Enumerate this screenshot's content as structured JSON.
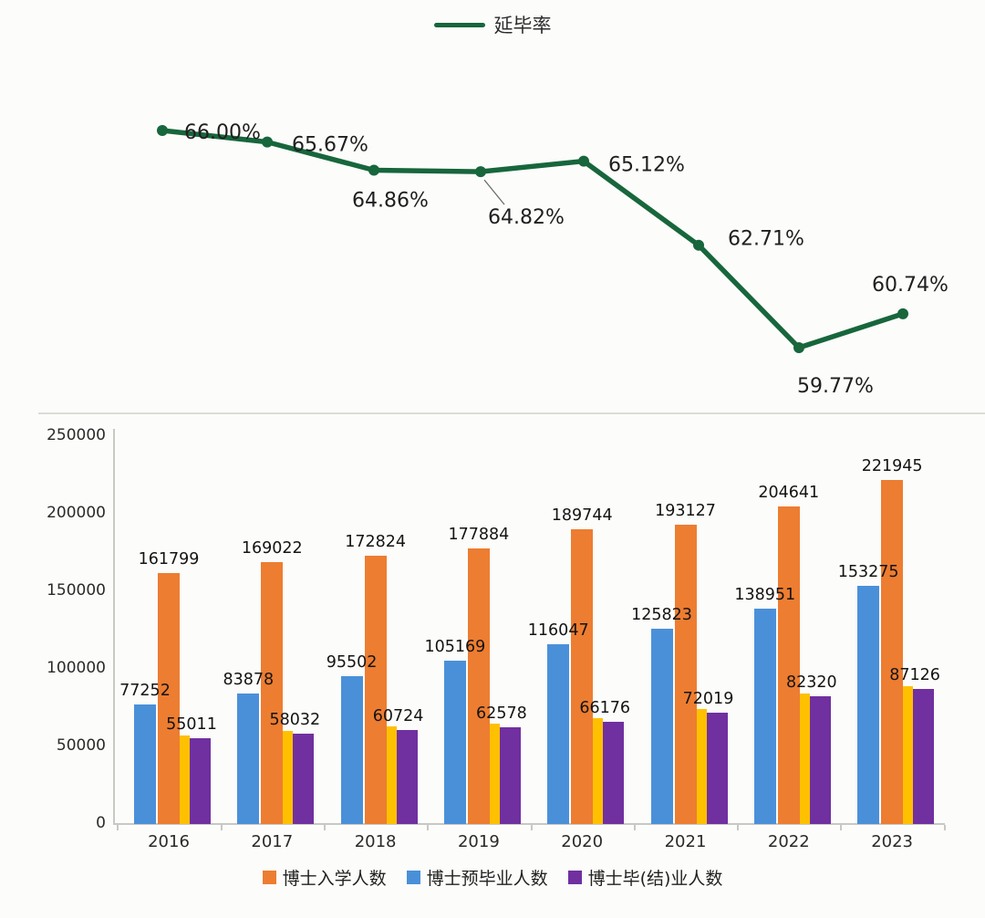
{
  "chart_data": [
    {
      "type": "line",
      "legend": [
        "延毕率"
      ],
      "x": [
        "2016",
        "2017",
        "2018",
        "2019",
        "2020",
        "2021",
        "2022",
        "2023"
      ],
      "values": [
        66.0,
        65.67,
        64.86,
        64.82,
        65.12,
        62.71,
        59.77,
        60.74
      ],
      "point_labels": [
        "66.00%",
        "65.67%",
        "64.86%",
        "64.82%",
        "65.12%",
        "62.71%",
        "59.77%",
        "60.74%"
      ],
      "line_color": "#17663C",
      "label_color": "#1f1f1f",
      "grid": false,
      "legend_position": "top"
    },
    {
      "type": "bar",
      "categories": [
        "2016",
        "2017",
        "2018",
        "2019",
        "2020",
        "2021",
        "2022",
        "2023"
      ],
      "series": [
        {
          "name": "博士入学人数",
          "color": "#ED7D31",
          "values": [
            161799,
            169022,
            172824,
            177884,
            189744,
            193127,
            204641,
            221945
          ]
        },
        {
          "name": "博士预毕业人数",
          "color": "#4A90D9",
          "values": [
            77252,
            83878,
            95502,
            105169,
            116047,
            125823,
            138951,
            153275
          ]
        },
        {
          "name": "博士毕(结)业人数",
          "color": "#7030A0",
          "values": [
            55011,
            58032,
            60724,
            62578,
            66176,
            72019,
            82320,
            87126
          ]
        }
      ],
      "unlabeled_yellow_bars": {
        "color": "#FFC000",
        "approx_values": [
          57000,
          60000,
          63000,
          65000,
          68000,
          74000,
          84000,
          89000
        ]
      },
      "ylim": [
        0,
        250000
      ],
      "y_ticks": [
        0,
        50000,
        100000,
        150000,
        200000,
        250000
      ],
      "grid": false,
      "legend_position": "bottom",
      "axis_color": "#c8c8c4"
    }
  ]
}
